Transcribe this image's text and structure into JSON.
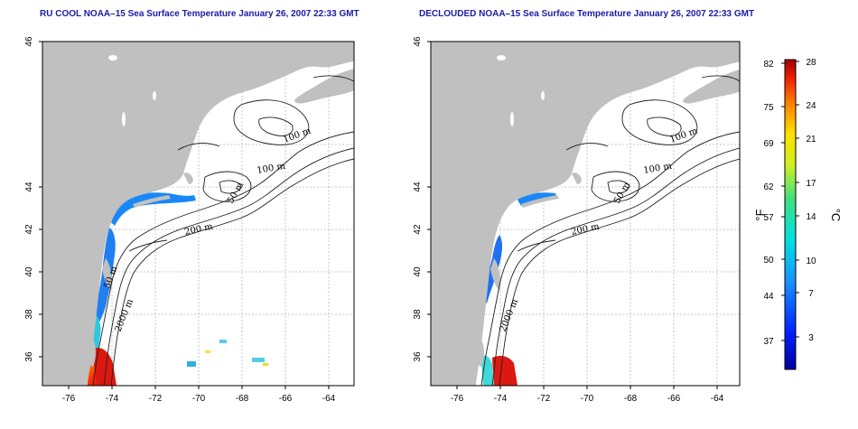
{
  "panels": [
    {
      "title": "RU COOL NOAA–15 Sea Surface Temperature January 26, 2007 22:33 GMT",
      "contour_labels": [
        "100 m",
        "100 m",
        "50 m",
        "200 m",
        "50 m",
        "2000 m"
      ]
    },
    {
      "title": "DECLOUDED NOAA–15 Sea Surface Temperature January 26, 2007 22:33 GMT",
      "contour_labels": [
        "100 m",
        "100 m",
        "50 m",
        "200 m",
        "2000 m"
      ]
    }
  ],
  "axes": {
    "x_ticks": [
      "-76",
      "-74",
      "-72",
      "-70",
      "-68",
      "-66",
      "-64"
    ],
    "y_ticks": [
      "36",
      "38",
      "40",
      "42",
      "44",
      "46"
    ]
  },
  "colorbar": {
    "fahrenheit_label": "°F",
    "celsius_label": "°C",
    "fahrenheit_ticks": [
      "82",
      "75",
      "69",
      "62",
      "57",
      "50",
      "44",
      "37"
    ],
    "celsius_ticks": [
      "28",
      "24",
      "21",
      "17",
      "14",
      "10",
      "7",
      "3"
    ]
  },
  "colors": {
    "land": "#c0c0c0",
    "title": "#1a1aa8",
    "cold": "#1040e0",
    "warm": "#e01010"
  }
}
